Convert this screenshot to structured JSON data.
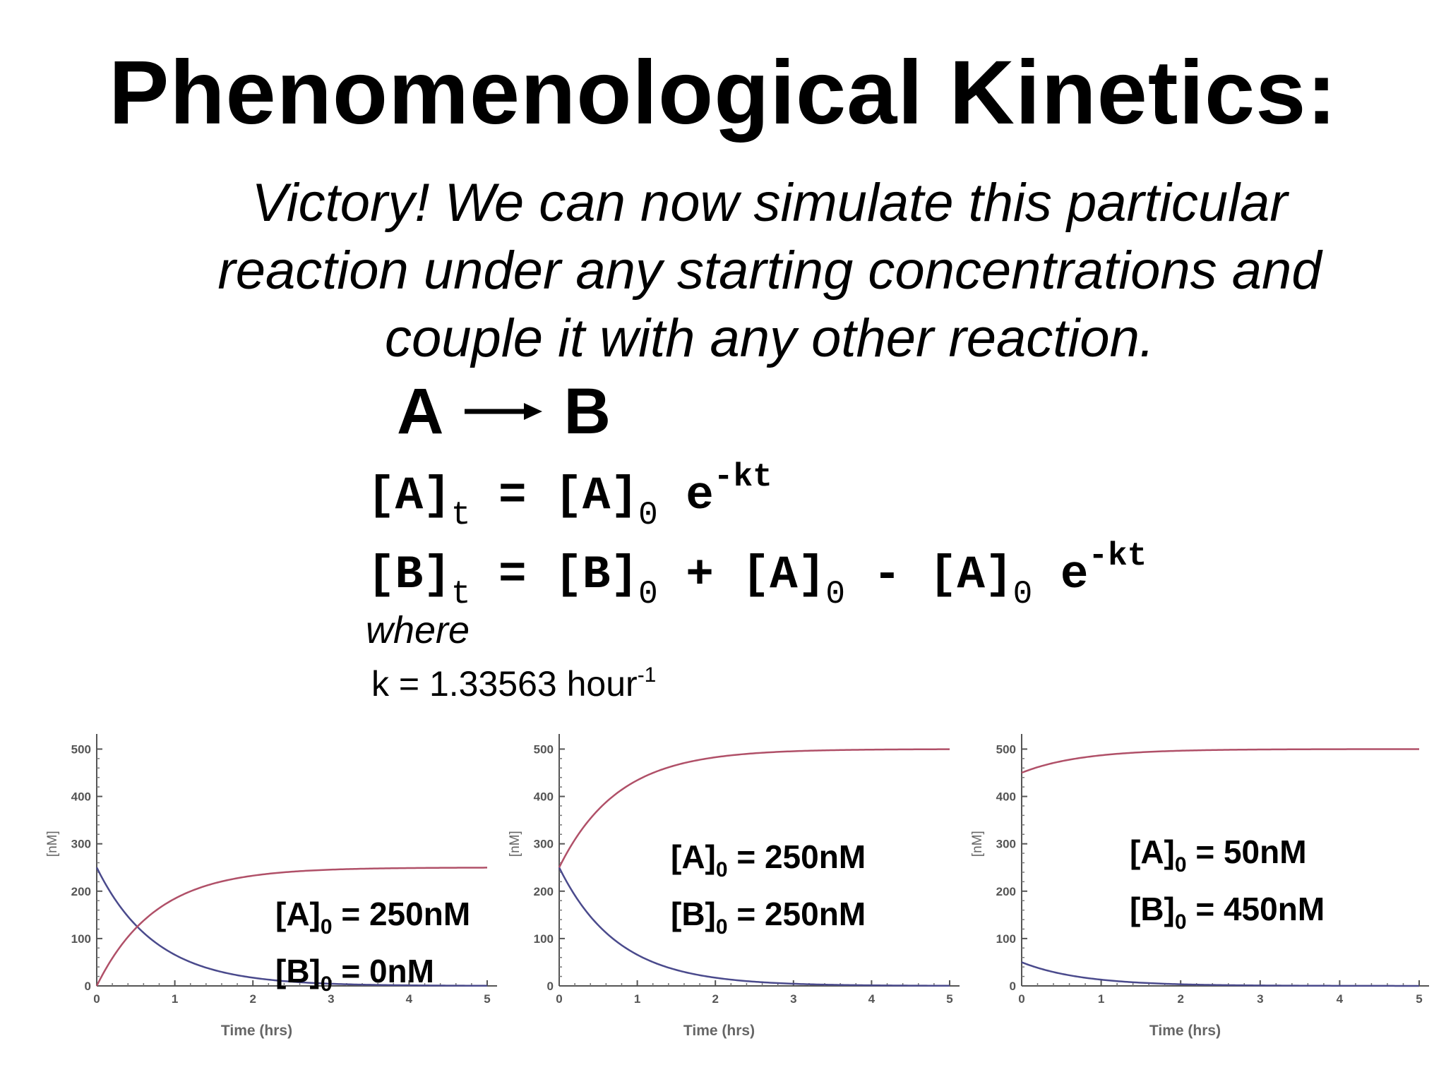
{
  "slide": {
    "title": "Phenomenological Kinetics:",
    "subtitle_lines": [
      "Victory!  We can now simulate this particular",
      "reaction under any starting concentrations and",
      "couple it with any other reaction."
    ],
    "reaction": {
      "reactant": "A",
      "product": "B"
    },
    "equation_A": {
      "lhs": "[A]",
      "lhs_sub": "t",
      "eq": " = ",
      "term1": "[A]",
      "term1_sub": "0",
      "exp_base": " e",
      "exp_sup": "-kt"
    },
    "equation_B": {
      "lhs": "[B]",
      "lhs_sub": "t",
      "eq": " = ",
      "term1": "[B]",
      "term1_sub": "0",
      "plus": " + ",
      "term2": "[A]",
      "term2_sub": "0",
      "minus": " - ",
      "term3": "[A]",
      "term3_sub": "0",
      "exp_base": " e",
      "exp_sup": "-kt"
    },
    "where": "where",
    "k_text": "k = 1.33563 hour",
    "k_sup": "-1"
  },
  "chart_data": [
    {
      "type": "line",
      "title": "",
      "xlabel": "Time (hrs)",
      "ylabel": "[nM]",
      "xlim": [
        0,
        5
      ],
      "ylim": [
        0,
        520
      ],
      "xticks": [
        "0",
        "1",
        "2",
        "3",
        "4",
        "5"
      ],
      "yticks": [
        "0",
        "100",
        "200",
        "300",
        "400",
        "500"
      ],
      "k": 1.33563,
      "A0": 250,
      "B0": 0,
      "label_lines": [
        {
          "prefix": "[A]",
          "sub": "0",
          "suffix": " = 250nM"
        },
        {
          "prefix": "[B]",
          "sub": "0",
          "suffix": " = 0nM"
        }
      ],
      "series": [
        {
          "key": "A",
          "color": "#4a4a8c",
          "x": [
            0,
            0.5,
            1,
            1.5,
            2,
            2.5,
            3,
            3.5,
            4,
            4.5,
            5
          ],
          "values": [
            250,
            128.2,
            65.8,
            33.7,
            17.3,
            8.9,
            4.6,
            2.3,
            1.2,
            0.6,
            0.3
          ]
        },
        {
          "key": "B",
          "color": "#b05068",
          "x": [
            0,
            0.5,
            1,
            1.5,
            2,
            2.5,
            3,
            3.5,
            4,
            4.5,
            5
          ],
          "values": [
            0,
            121.8,
            184.2,
            216.3,
            232.7,
            241.1,
            245.4,
            247.7,
            248.8,
            249.4,
            249.7
          ]
        }
      ]
    },
    {
      "type": "line",
      "title": "",
      "xlabel": "Time (hrs)",
      "ylabel": "[nM]",
      "xlim": [
        0,
        5
      ],
      "ylim": [
        0,
        520
      ],
      "xticks": [
        "0",
        "1",
        "2",
        "3",
        "4",
        "5"
      ],
      "yticks": [
        "0",
        "100",
        "200",
        "300",
        "400",
        "500"
      ],
      "k": 1.33563,
      "A0": 250,
      "B0": 250,
      "label_lines": [
        {
          "prefix": "[A]",
          "sub": "0",
          "suffix": " = 250nM"
        },
        {
          "prefix": "[B]",
          "sub": "0",
          "suffix": " = 250nM"
        }
      ],
      "series": [
        {
          "key": "A",
          "color": "#4a4a8c",
          "x": [
            0,
            0.5,
            1,
            1.5,
            2,
            2.5,
            3,
            3.5,
            4,
            4.5,
            5
          ],
          "values": [
            250,
            128.2,
            65.8,
            33.7,
            17.3,
            8.9,
            4.6,
            2.3,
            1.2,
            0.6,
            0.3
          ]
        },
        {
          "key": "B",
          "color": "#b05068",
          "x": [
            0,
            0.5,
            1,
            1.5,
            2,
            2.5,
            3,
            3.5,
            4,
            4.5,
            5
          ],
          "values": [
            250,
            371.8,
            434.2,
            466.3,
            482.7,
            491.1,
            495.4,
            497.7,
            498.8,
            499.4,
            499.7
          ]
        }
      ]
    },
    {
      "type": "line",
      "title": "",
      "xlabel": "Time (hrs)",
      "ylabel": "[nM]",
      "xlim": [
        0,
        5
      ],
      "ylim": [
        0,
        520
      ],
      "xticks": [
        "0",
        "1",
        "2",
        "3",
        "4",
        "5"
      ],
      "yticks": [
        "0",
        "100",
        "200",
        "300",
        "400",
        "500"
      ],
      "k": 1.33563,
      "A0": 50,
      "B0": 450,
      "label_lines": [
        {
          "prefix": "[A]",
          "sub": "0",
          "suffix": " = 50nM"
        },
        {
          "prefix": "[B]",
          "sub": "0",
          "suffix": " = 450nM"
        }
      ],
      "series": [
        {
          "key": "A",
          "color": "#4a4a8c",
          "x": [
            0,
            0.5,
            1,
            1.5,
            2,
            2.5,
            3,
            3.5,
            4,
            4.5,
            5
          ],
          "values": [
            50,
            25.6,
            13.2,
            6.7,
            3.5,
            1.8,
            0.9,
            0.5,
            0.2,
            0.1,
            0.1
          ]
        },
        {
          "key": "B",
          "color": "#b05068",
          "x": [
            0,
            0.5,
            1,
            1.5,
            2,
            2.5,
            3,
            3.5,
            4,
            4.5,
            5
          ],
          "values": [
            450,
            474.4,
            486.8,
            493.3,
            496.5,
            498.2,
            499.1,
            499.5,
            499.8,
            499.9,
            499.9
          ]
        }
      ]
    }
  ]
}
